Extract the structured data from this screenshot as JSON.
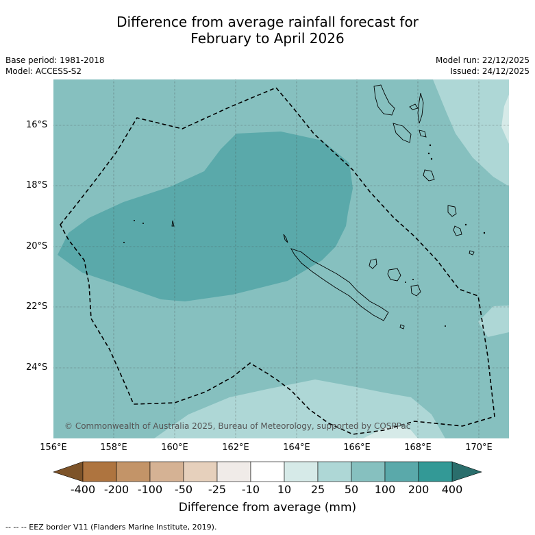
{
  "title_line1": "Difference from average rainfall forecast for",
  "title_line2": "February to April 2026",
  "base_period": "Base period: 1981-2018",
  "model": "Model: ACCESS-S2",
  "model_run": "Model run: 22/12/2025",
  "issued": "Issued: 24/12/2025",
  "copyright": "© Commonwealth of Australia 2025, Bureau of Meteorology, supported by COSPPac",
  "footer": "-- -- -- EEZ border V11 (Flanders Marine Institute, 2019).",
  "lat_labels": [
    "16°S",
    "18°S",
    "20°S",
    "22°S",
    "24°S"
  ],
  "lon_labels": [
    "156°E",
    "158°E",
    "160°E",
    "162°E",
    "164°E",
    "166°E",
    "168°E",
    "170°E"
  ],
  "colorbar": {
    "title": "Difference from average (mm)",
    "tick_labels": [
      "-400",
      "-200",
      "-100",
      "-50",
      "-25",
      "-10",
      "10",
      "25",
      "50",
      "100",
      "200",
      "400"
    ],
    "colors": [
      "#7d5329",
      "#ae743f",
      "#c39468",
      "#d5b294",
      "#e6d0bc",
      "#f0ebe8",
      "#ffffff",
      "#d6eae8",
      "#aed7d6",
      "#86c0bf",
      "#5aa9aa",
      "#339996",
      "#2a6e6c"
    ]
  },
  "colors": {
    "base_50_100": "#86c0bf",
    "high_100_200": "#5aa9aa",
    "low_25_50": "#aed7d6",
    "gridline": "#404040"
  }
}
